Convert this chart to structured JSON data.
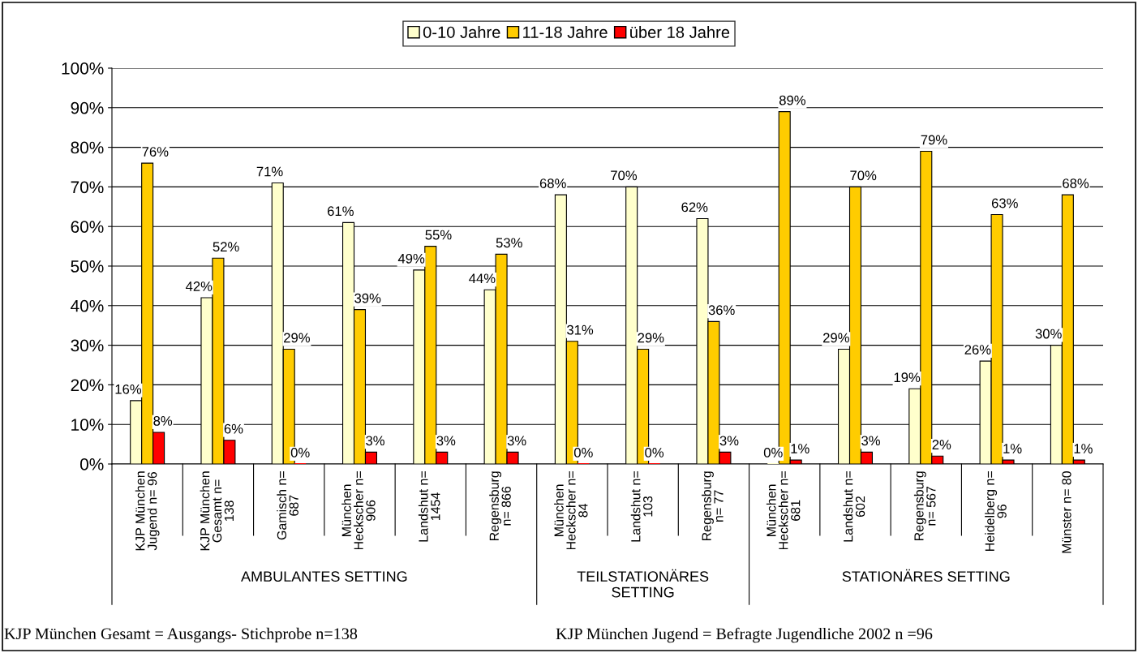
{
  "chart_data": {
    "type": "bar",
    "categories": [
      "KJP München\nJugend n= 96",
      "KJP München\nGesamt n=\n138",
      "Gamisch n=\n687",
      "München\nHeckscher n=\n906",
      "Landshut n=\n1454",
      "Regensburg\nn= 866",
      "München\nHeckscher n=\n84",
      "Landshut n=\n103",
      "Regensburg\nn= 77",
      "München\nHeckscher n=\n681",
      "Landshut n=\n602",
      "Regensburg\nn= 567",
      "Heidelberg n=\n96",
      "Münster n= 80"
    ],
    "series": [
      {
        "name": "0-10 Jahre",
        "color": "#ffffcc",
        "values": [
          16,
          42,
          71,
          61,
          49,
          44,
          68,
          70,
          62,
          0,
          29,
          19,
          26,
          30
        ],
        "value_labels": [
          "16%",
          "42%",
          "71%",
          "61%",
          "49%",
          "44%",
          "68%",
          "70%",
          "62%",
          "0%",
          "29%",
          "19%",
          "26%",
          "30%"
        ]
      },
      {
        "name": "11-18 Jahre",
        "color": "#ffcc00",
        "values": [
          76,
          52,
          29,
          39,
          55,
          53,
          31,
          29,
          36,
          89,
          70,
          79,
          63,
          68
        ],
        "value_labels": [
          "76%",
          "52%",
          "29%",
          "39%",
          "55%",
          "53%",
          "31%",
          "29%",
          "36%",
          "89%",
          "70%",
          "79%",
          "63%",
          "68%"
        ]
      },
      {
        "name": "über 18 Jahre",
        "color": "#ff0000",
        "values": [
          8,
          6,
          0,
          3,
          3,
          3,
          0,
          0,
          3,
          1,
          3,
          2,
          1,
          1
        ],
        "value_labels": [
          "8%",
          "6%",
          "0%",
          "3%",
          "3%",
          "3%",
          "0%",
          "0%",
          "3%",
          "1%",
          "3%",
          "2%",
          "1%",
          "1%"
        ]
      }
    ],
    "ylim": [
      0,
      100
    ],
    "yticks": [
      {
        "value": 0,
        "label": "0%"
      },
      {
        "value": 10,
        "label": "10%"
      },
      {
        "value": 20,
        "label": "20%"
      },
      {
        "value": 30,
        "label": "30%"
      },
      {
        "value": 40,
        "label": "40%"
      },
      {
        "value": 50,
        "label": "50%"
      },
      {
        "value": 60,
        "label": "60%"
      },
      {
        "value": 70,
        "label": "70%"
      },
      {
        "value": 80,
        "label": "80%"
      },
      {
        "value": 90,
        "label": "90%"
      },
      {
        "value": 100,
        "label": "100%"
      }
    ],
    "grid": "y",
    "legend": "top",
    "annotations": [
      "AMBULANTES SETTING",
      "TEILSTATIONÄRES\nSETTING",
      "STATIONÄRES SETTING",
      "KJP München Gesamt = Ausgangs- Stichprobe n=138",
      "KJP München Jugend = Befragte Jugendliche 2002 n =96"
    ]
  }
}
